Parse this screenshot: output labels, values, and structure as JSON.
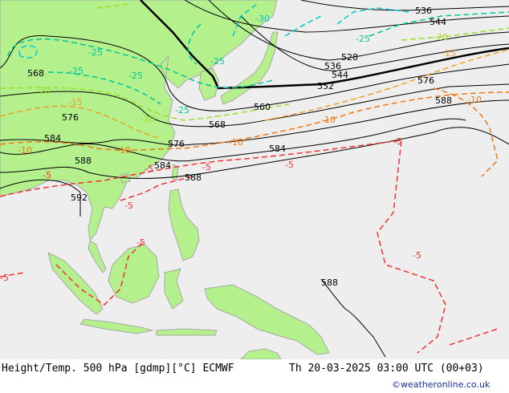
{
  "map": {
    "colors": {
      "land": "#b4f08c",
      "sea": "#eeeeee",
      "border": "#a8a8a8",
      "height": "#000000",
      "t_minus30": "#00c8d2",
      "t_minus25": "#00c896",
      "t_minus20": "#a0dc28",
      "t_minus15": "#f0a028",
      "t_minus10": "#f07814",
      "t_minus5": "#f03232"
    },
    "height_labels": [
      "536",
      "544",
      "528",
      "536",
      "544",
      "552",
      "568",
      "560",
      "568",
      "576",
      "576",
      "576",
      "584",
      "584",
      "584",
      "588",
      "588",
      "592",
      "588",
      "588"
    ],
    "temp_labels": [
      "-30",
      "-25",
      "-25",
      "-25",
      "-25",
      "-25",
      "-25",
      "-20",
      "-20",
      "-20",
      "-15",
      "-15",
      "-10",
      "-10",
      "-10",
      "-10",
      "-10",
      "-5",
      "-5",
      "-5",
      "-5",
      "-5",
      "-5",
      "-5",
      "-5",
      "-5"
    ]
  },
  "footer": {
    "title": "Height/Temp. 500 hPa [gdmp][°C] ECMWF",
    "time": "Th 20-03-2025 03:00 UTC (00+03)",
    "credit": "©weatheronline.co.uk"
  }
}
